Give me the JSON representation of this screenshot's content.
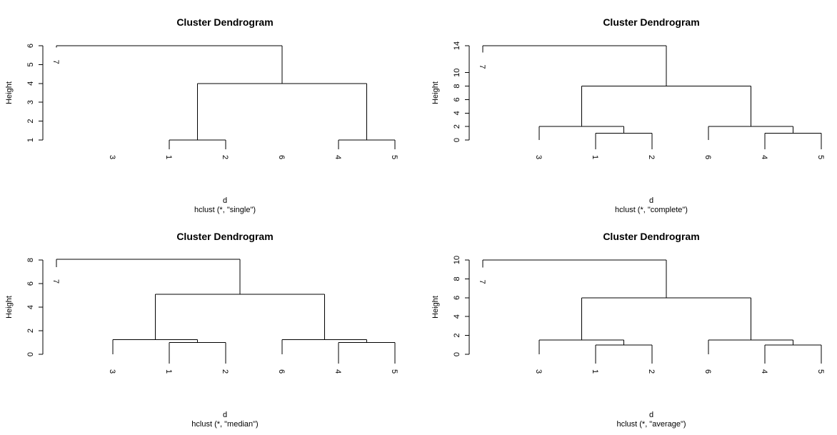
{
  "chart_data": [
    {
      "type": "dendrogram",
      "title": "Cluster Dendrogram",
      "ylabel": "Height",
      "xlabel": "d",
      "subtitle": "hclust (*, \"single\")",
      "ylim": [
        1,
        6
      ],
      "yticks": [
        "1",
        "2",
        "3",
        "4",
        "5",
        "6"
      ],
      "leaf_order": [
        "7",
        "3",
        "1",
        "2",
        "6",
        "4",
        "5"
      ],
      "leaf_heights": [
        5.9,
        1,
        1,
        1,
        1,
        1,
        1
      ],
      "merges": [
        {
          "left": "leaf:3",
          "right": "leaf:2",
          "height": 1
        },
        {
          "left": "leaf:5",
          "right": "leaf:6",
          "height": 1
        },
        {
          "left": "merge:0",
          "right": "merge:1",
          "height": 4
        },
        {
          "left": "leaf:0",
          "right": "merge:2",
          "height": 6
        }
      ],
      "ticked_leaves": [
        2,
        3,
        5,
        6
      ]
    },
    {
      "type": "dendrogram",
      "title": "Cluster Dendrogram",
      "ylabel": "Height",
      "xlabel": "d",
      "subtitle": "hclust (*, \"complete\")",
      "ylim": [
        0,
        14
      ],
      "yticks": [
        "0",
        "2",
        "4",
        "6",
        "8",
        "10",
        "14"
      ],
      "leaf_order": [
        "7",
        "3",
        "1",
        "2",
        "6",
        "4",
        "5"
      ],
      "leaf_heights": [
        13,
        0,
        0,
        0,
        0,
        0,
        0
      ],
      "merges": [
        {
          "left": "leaf:2",
          "right": "leaf:3",
          "height": 1
        },
        {
          "left": "leaf:1",
          "right": "merge:0",
          "height": 2
        },
        {
          "left": "leaf:5",
          "right": "leaf:6",
          "height": 1
        },
        {
          "left": "leaf:4",
          "right": "merge:2",
          "height": 2
        },
        {
          "left": "merge:1",
          "right": "merge:3",
          "height": 8
        },
        {
          "left": "leaf:0",
          "right": "merge:4",
          "height": 14
        }
      ],
      "ticked_leaves": [
        2,
        3,
        5,
        6
      ]
    },
    {
      "type": "dendrogram",
      "title": "Cluster Dendrogram",
      "ylabel": "Height",
      "xlabel": "d",
      "subtitle": "hclust (*, \"median\")",
      "ylim": [
        0,
        8
      ],
      "yticks": [
        "0",
        "2",
        "4",
        "6",
        "8"
      ],
      "leaf_order": [
        "7",
        "3",
        "1",
        "2",
        "6",
        "4",
        "5"
      ],
      "leaf_heights": [
        7.4,
        0,
        0,
        0,
        0,
        0,
        0
      ],
      "merges": [
        {
          "left": "leaf:2",
          "right": "leaf:3",
          "height": 1
        },
        {
          "left": "leaf:1",
          "right": "merge:0",
          "height": 1.25
        },
        {
          "left": "leaf:5",
          "right": "leaf:6",
          "height": 1
        },
        {
          "left": "leaf:4",
          "right": "merge:2",
          "height": 1.25
        },
        {
          "left": "merge:1",
          "right": "merge:3",
          "height": 5.1
        },
        {
          "left": "leaf:0",
          "right": "merge:4",
          "height": 8.05
        }
      ],
      "ticked_leaves": [
        2,
        3,
        5,
        6
      ]
    },
    {
      "type": "dendrogram",
      "title": "Cluster Dendrogram",
      "ylabel": "Height",
      "xlabel": "d",
      "subtitle": "hclust (*, \"average\")",
      "ylim": [
        0,
        10
      ],
      "yticks": [
        "0",
        "2",
        "4",
        "6",
        "8",
        "10"
      ],
      "leaf_order": [
        "7",
        "3",
        "1",
        "2",
        "6",
        "4",
        "5"
      ],
      "leaf_heights": [
        9.2,
        0,
        0,
        0,
        0,
        0,
        0
      ],
      "merges": [
        {
          "left": "leaf:2",
          "right": "leaf:3",
          "height": 1
        },
        {
          "left": "leaf:1",
          "right": "merge:0",
          "height": 1.5
        },
        {
          "left": "leaf:5",
          "right": "leaf:6",
          "height": 1
        },
        {
          "left": "leaf:4",
          "right": "merge:2",
          "height": 1.5
        },
        {
          "left": "merge:1",
          "right": "merge:3",
          "height": 6
        },
        {
          "left": "leaf:0",
          "right": "merge:4",
          "height": 10
        }
      ],
      "ticked_leaves": [
        2,
        3,
        5,
        6
      ]
    }
  ]
}
